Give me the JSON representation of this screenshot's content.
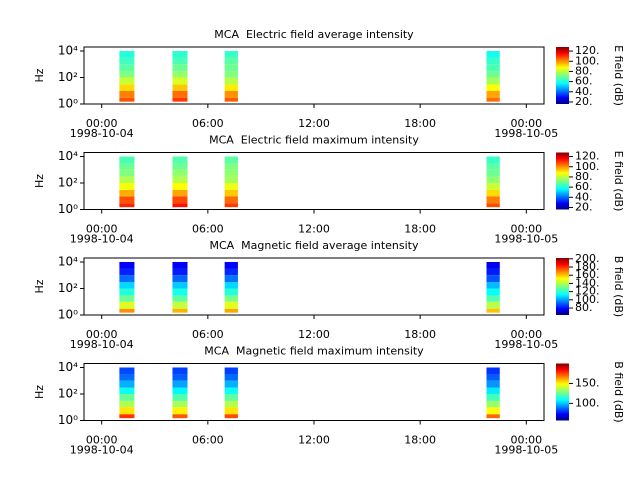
{
  "chart_data": [
    {
      "type": "spectrogram",
      "title": "MCA  Electric field average intensity",
      "ylabel": "Hz",
      "yscale": "log",
      "xlim": [
        -1,
        25
      ],
      "xticks": [
        {
          "value": 0,
          "label": "00:00"
        },
        {
          "value": 6,
          "label": "06:00"
        },
        {
          "value": 12,
          "label": "12:00"
        },
        {
          "value": 18,
          "label": "18:00"
        },
        {
          "value": 24,
          "label": "00:00"
        }
      ],
      "date_labels": [
        {
          "value": 0,
          "label": "1998-10-04"
        },
        {
          "value": 24,
          "label": "1998-10-05"
        }
      ],
      "ylim": [
        1,
        20000
      ],
      "yticks": [
        {
          "value": 1,
          "label": "10⁰"
        },
        {
          "value": 100,
          "label": "10²"
        },
        {
          "value": 10000,
          "label": "10⁴"
        }
      ],
      "freq_bins": [
        1.5,
        3,
        10,
        30,
        100,
        300,
        1000,
        3000,
        10000
      ],
      "blocks": [
        {
          "start": 1.0,
          "end": 1.85,
          "values": [
            105,
            100,
            90,
            80,
            72,
            68,
            65,
            62
          ]
        },
        {
          "start": 4.0,
          "end": 4.85,
          "values": [
            108,
            102,
            92,
            82,
            74,
            70,
            66,
            63
          ]
        },
        {
          "start": 6.95,
          "end": 7.7,
          "values": [
            104,
            98,
            88,
            78,
            72,
            70,
            68,
            64
          ]
        },
        {
          "start": 21.75,
          "end": 22.5,
          "values": [
            102,
            96,
            86,
            76,
            70,
            66,
            64,
            60
          ]
        }
      ],
      "clim": [
        16,
        128
      ],
      "cticks": [
        {
          "value": 20,
          "label": "20."
        },
        {
          "value": 40,
          "label": "40."
        },
        {
          "value": 60,
          "label": "60."
        },
        {
          "value": 80,
          "label": "80."
        },
        {
          "value": 100,
          "label": "100."
        },
        {
          "value": 120,
          "label": "120."
        }
      ],
      "clabel": "E field (dB)"
    },
    {
      "type": "spectrogram",
      "title": "MCA  Electric field maximum intensity",
      "ylabel": "Hz",
      "yscale": "log",
      "xlim": [
        -1,
        25
      ],
      "xticks": [
        {
          "value": 0,
          "label": "00:00"
        },
        {
          "value": 6,
          "label": "06:00"
        },
        {
          "value": 12,
          "label": "12:00"
        },
        {
          "value": 18,
          "label": "18:00"
        },
        {
          "value": 24,
          "label": "00:00"
        }
      ],
      "date_labels": [
        {
          "value": 0,
          "label": "1998-10-04"
        },
        {
          "value": 24,
          "label": "1998-10-05"
        }
      ],
      "ylim": [
        1,
        20000
      ],
      "yticks": [
        {
          "value": 1,
          "label": "10⁰"
        },
        {
          "value": 100,
          "label": "10²"
        },
        {
          "value": 10000,
          "label": "10⁴"
        }
      ],
      "freq_bins": [
        1.5,
        3,
        10,
        30,
        100,
        300,
        1000,
        3000,
        10000
      ],
      "blocks": [
        {
          "start": 1.0,
          "end": 1.85,
          "values": [
            110,
            105,
            95,
            85,
            78,
            72,
            70,
            66
          ]
        },
        {
          "start": 4.0,
          "end": 4.85,
          "values": [
            112,
            106,
            96,
            86,
            78,
            74,
            70,
            67
          ]
        },
        {
          "start": 6.95,
          "end": 7.7,
          "values": [
            108,
            102,
            92,
            84,
            76,
            74,
            72,
            68
          ]
        },
        {
          "start": 21.75,
          "end": 22.5,
          "values": [
            106,
            100,
            90,
            80,
            74,
            70,
            68,
            64
          ]
        }
      ],
      "clim": [
        16,
        128
      ],
      "cticks": [
        {
          "value": 20,
          "label": "20."
        },
        {
          "value": 40,
          "label": "40."
        },
        {
          "value": 60,
          "label": "60."
        },
        {
          "value": 80,
          "label": "80."
        },
        {
          "value": 100,
          "label": "100."
        },
        {
          "value": 120,
          "label": "120."
        }
      ],
      "clabel": "E field (dB)"
    },
    {
      "type": "spectrogram",
      "title": "MCA  Magnetic field average intensity",
      "ylabel": "Hz",
      "yscale": "log",
      "xlim": [
        -1,
        25
      ],
      "xticks": [
        {
          "value": 0,
          "label": "00:00"
        },
        {
          "value": 6,
          "label": "06:00"
        },
        {
          "value": 12,
          "label": "12:00"
        },
        {
          "value": 18,
          "label": "18:00"
        },
        {
          "value": 24,
          "label": "00:00"
        }
      ],
      "date_labels": [
        {
          "value": 0,
          "label": "1998-10-04"
        },
        {
          "value": 24,
          "label": "1998-10-05"
        }
      ],
      "ylim": [
        1,
        20000
      ],
      "yticks": [
        {
          "value": 1,
          "label": "10⁰"
        },
        {
          "value": 100,
          "label": "10²"
        },
        {
          "value": 10000,
          "label": "10⁴"
        }
      ],
      "freq_bins": [
        1.5,
        3,
        10,
        30,
        100,
        300,
        1000,
        3000,
        10000
      ],
      "blocks": [
        {
          "start": 1.0,
          "end": 1.85,
          "values": [
            165,
            145,
            130,
            120,
            110,
            95,
            85,
            80
          ]
        },
        {
          "start": 4.0,
          "end": 4.85,
          "values": [
            160,
            142,
            128,
            118,
            108,
            94,
            84,
            80
          ]
        },
        {
          "start": 6.95,
          "end": 7.7,
          "values": [
            162,
            146,
            132,
            120,
            110,
            96,
            86,
            80
          ]
        },
        {
          "start": 21.75,
          "end": 22.5,
          "values": [
            158,
            140,
            126,
            116,
            106,
            92,
            84,
            78
          ]
        }
      ],
      "clim": [
        63,
        202
      ],
      "cticks": [
        {
          "value": 80,
          "label": "80."
        },
        {
          "value": 100,
          "label": "100."
        },
        {
          "value": 120,
          "label": "120."
        },
        {
          "value": 140,
          "label": "140."
        },
        {
          "value": 160,
          "label": "160."
        },
        {
          "value": 180,
          "label": "180."
        },
        {
          "value": 200,
          "label": "200."
        }
      ],
      "clabel": "B field (dB)"
    },
    {
      "type": "spectrogram",
      "title": "MCA  Magnetic field maximum intensity",
      "ylabel": "Hz",
      "yscale": "log",
      "xlim": [
        -1,
        25
      ],
      "xticks": [
        {
          "value": 0,
          "label": "00:00"
        },
        {
          "value": 6,
          "label": "06:00"
        },
        {
          "value": 12,
          "label": "12:00"
        },
        {
          "value": 18,
          "label": "18:00"
        },
        {
          "value": 24,
          "label": "00:00"
        }
      ],
      "date_labels": [
        {
          "value": 0,
          "label": "1998-10-04"
        },
        {
          "value": 24,
          "label": "1998-10-05"
        }
      ],
      "ylim": [
        1,
        20000
      ],
      "yticks": [
        {
          "value": 1,
          "label": "10⁰"
        },
        {
          "value": 100,
          "label": "10²"
        },
        {
          "value": 10000,
          "label": "10⁴"
        }
      ],
      "freq_bins": [
        1.5,
        3,
        10,
        30,
        100,
        300,
        1000,
        3000,
        10000
      ],
      "blocks": [
        {
          "start": 1.0,
          "end": 1.85,
          "values": [
            175,
            150,
            135,
            125,
            112,
            100,
            90,
            85
          ]
        },
        {
          "start": 4.0,
          "end": 4.85,
          "values": [
            170,
            148,
            134,
            122,
            110,
            98,
            88,
            84
          ]
        },
        {
          "start": 6.95,
          "end": 7.7,
          "values": [
            172,
            150,
            136,
            124,
            112,
            100,
            90,
            84
          ]
        },
        {
          "start": 21.75,
          "end": 22.5,
          "values": [
            168,
            146,
            132,
            120,
            108,
            96,
            88,
            82
          ]
        }
      ],
      "clim": [
        57,
        200
      ],
      "cticks": [
        {
          "value": 100,
          "label": "100."
        },
        {
          "value": 150,
          "label": "150."
        }
      ],
      "clabel": "B field (dB)"
    }
  ]
}
